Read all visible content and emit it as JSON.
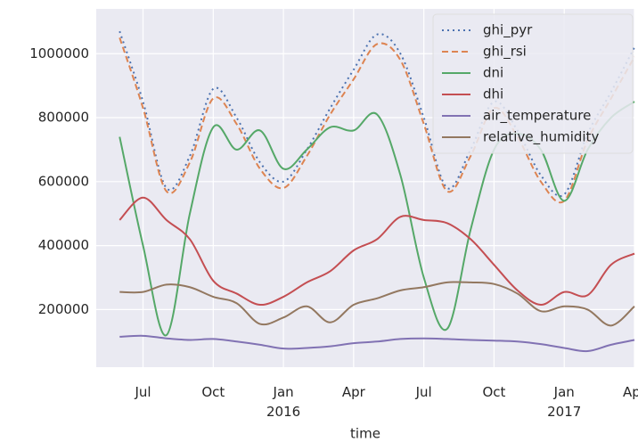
{
  "chart_data": {
    "type": "line",
    "x_label": "time",
    "x": [
      "2015-06",
      "2015-07",
      "2015-08",
      "2015-09",
      "2015-10",
      "2015-11",
      "2015-12",
      "2016-01",
      "2016-02",
      "2016-03",
      "2016-04",
      "2016-05",
      "2016-06",
      "2016-07",
      "2016-08",
      "2016-09",
      "2016-10",
      "2016-11",
      "2016-12",
      "2017-01",
      "2017-02",
      "2017-03",
      "2017-04"
    ],
    "xlim": [
      "2015-05",
      "2017-04"
    ],
    "xticks": [
      {
        "value": "2015-07",
        "label": "Jul"
      },
      {
        "value": "2015-10",
        "label": "Oct"
      },
      {
        "value": "2016-01",
        "label": "Jan\n2016"
      },
      {
        "value": "2016-04",
        "label": "Apr"
      },
      {
        "value": "2016-07",
        "label": "Jul"
      },
      {
        "value": "2016-10",
        "label": "Oct"
      },
      {
        "value": "2017-01",
        "label": "Jan\n2017"
      },
      {
        "value": "2017-04",
        "label": "Apr"
      }
    ],
    "ylim": [
      20000,
      1140000
    ],
    "yticks": [
      200000,
      400000,
      600000,
      800000,
      1000000
    ],
    "grid": true,
    "legend": "upper right",
    "series": [
      {
        "name": "ghi_pyr",
        "color": "#4c72b0",
        "dash": "dotted",
        "values": [
          1070000,
          850000,
          580000,
          680000,
          890000,
          800000,
          660000,
          600000,
          700000,
          830000,
          950000,
          1060000,
          1000000,
          800000,
          580000,
          700000,
          850000,
          760000,
          620000,
          560000,
          750000,
          880000,
          1020000
        ]
      },
      {
        "name": "ghi_rsi",
        "color": "#dd8452",
        "dash": "dashed",
        "values": [
          1050000,
          830000,
          570000,
          660000,
          860000,
          780000,
          640000,
          580000,
          680000,
          810000,
          920000,
          1030000,
          980000,
          780000,
          570000,
          680000,
          830000,
          740000,
          600000,
          540000,
          730000,
          860000,
          990000
        ]
      },
      {
        "name": "dni",
        "color": "#55a868",
        "dash": "solid",
        "values": [
          740000,
          400000,
          120000,
          500000,
          770000,
          700000,
          760000,
          640000,
          700000,
          770000,
          760000,
          810000,
          620000,
          300000,
          140000,
          450000,
          700000,
          750000,
          700000,
          540000,
          700000,
          800000,
          850000
        ]
      },
      {
        "name": "dhi",
        "color": "#c44e52",
        "dash": "solid",
        "values": [
          480000,
          550000,
          480000,
          420000,
          290000,
          250000,
          215000,
          240000,
          285000,
          320000,
          385000,
          420000,
          490000,
          480000,
          470000,
          420000,
          340000,
          260000,
          215000,
          255000,
          245000,
          340000,
          375000
        ]
      },
      {
        "name": "air_temperature",
        "color": "#8172b3",
        "dash": "solid",
        "values": [
          115000,
          118000,
          110000,
          105000,
          108000,
          100000,
          90000,
          78000,
          80000,
          85000,
          95000,
          100000,
          108000,
          110000,
          108000,
          105000,
          103000,
          100000,
          92000,
          80000,
          70000,
          90000,
          105000
        ]
      },
      {
        "name": "relative_humidity",
        "color": "#937860",
        "dash": "solid",
        "values": [
          255000,
          255000,
          278000,
          270000,
          240000,
          220000,
          155000,
          175000,
          210000,
          160000,
          215000,
          235000,
          260000,
          270000,
          285000,
          285000,
          280000,
          250000,
          195000,
          210000,
          200000,
          150000,
          210000
        ]
      }
    ]
  }
}
